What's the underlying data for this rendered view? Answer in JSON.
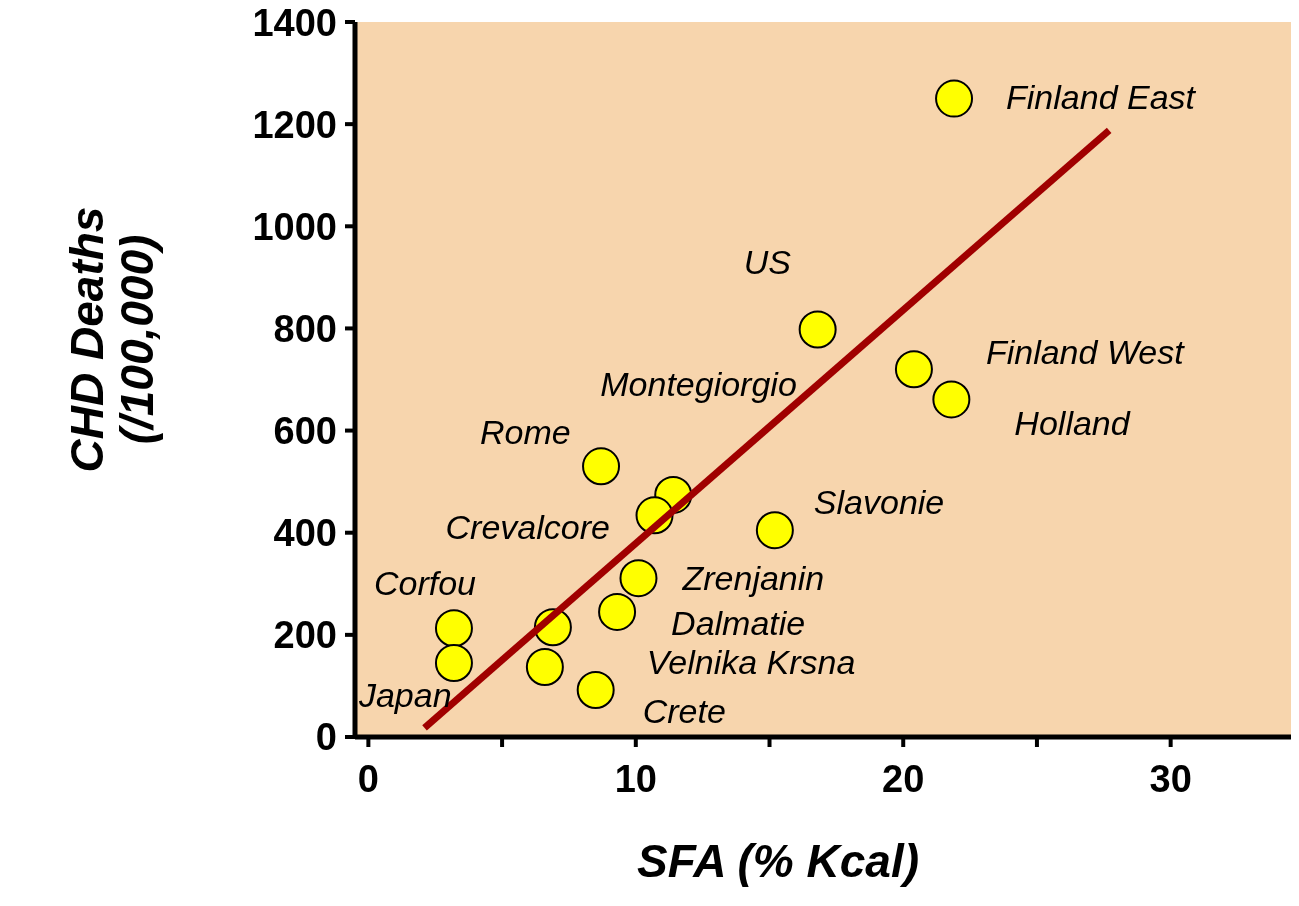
{
  "chart_data": {
    "type": "scatter",
    "xlabel": "SFA (% Kcal)",
    "ylabel": "CHD Deaths\n(/100,000)",
    "xlim": [
      -0.5,
      34.5
    ],
    "ylim": [
      0,
      1400
    ],
    "xticks": [
      0,
      {
        "value": 5,
        "label": null
      },
      10,
      {
        "value": 15,
        "label": null
      },
      20,
      {
        "value": 25,
        "label": null
      },
      30
    ],
    "yticks": [
      0,
      200,
      400,
      600,
      800,
      1000,
      1200,
      1400
    ],
    "grid": false,
    "series": [
      {
        "marker": "circle",
        "color": "#ffff00",
        "x": [
          21.9,
          16.8,
          20.4,
          21.8,
          8.7,
          11.4,
          10.7,
          15.2,
          10.1,
          9.3,
          6.6,
          8.5,
          3.2,
          3.2,
          6.9
        ],
        "values": [
          1250,
          798,
          720,
          661,
          530,
          474,
          434,
          405,
          311,
          245,
          137,
          92,
          213,
          145,
          215
        ]
      },
      {
        "type": "line",
        "marker": "none",
        "color": "#a00000",
        "x": [
          2.1,
          27.7
        ],
        "values": [
          18,
          1188
        ]
      }
    ],
    "annotations": [
      {
        "text": "Finland East",
        "x": 21.9,
        "y": 1250
      },
      {
        "text": "US",
        "x": 16.8,
        "y": 798
      },
      {
        "text": "Finland West",
        "x": 20.4,
        "y": 720
      },
      {
        "text": "Holland",
        "x": 21.8,
        "y": 661
      },
      {
        "text": "Rome",
        "x": 8.7,
        "y": 530
      },
      {
        "text": "Montegiorgio",
        "x": 11.4,
        "y": 474
      },
      {
        "text": "Crevalcore",
        "x": 10.7,
        "y": 434
      },
      {
        "text": "Slavonie",
        "x": 15.2,
        "y": 405
      },
      {
        "text": "Zrenjanin",
        "x": 10.1,
        "y": 311
      },
      {
        "text": "Dalmatie",
        "x": 9.3,
        "y": 245
      },
      {
        "text": "Velnika Krsna",
        "x": 6.6,
        "y": 137
      },
      {
        "text": "Crete",
        "x": 8.5,
        "y": 92
      },
      {
        "text": "Corfou",
        "x": 3.2,
        "y": 213
      },
      {
        "text": "Japan",
        "x": 3.2,
        "y": 145
      }
    ]
  }
}
